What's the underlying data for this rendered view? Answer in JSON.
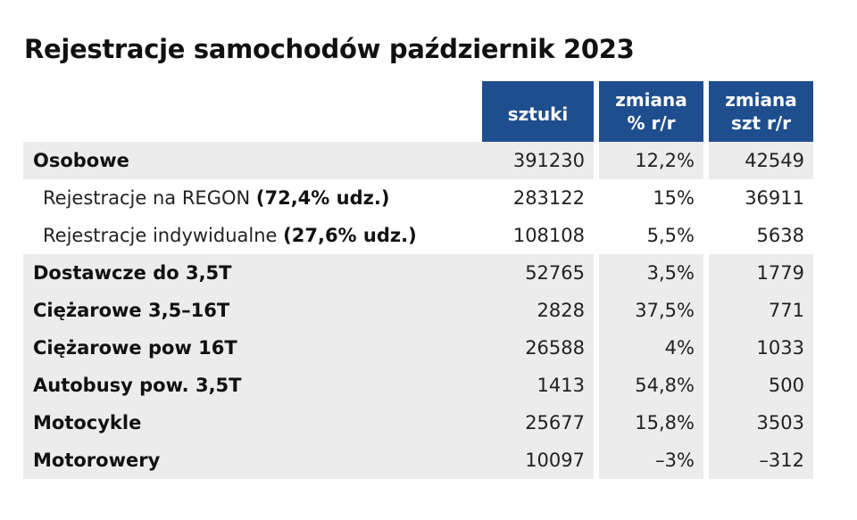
{
  "title": "Rejestracje samochodów październik 2023",
  "headers": {
    "units": "sztuki",
    "change_pct_line1": "zmiana",
    "change_pct_line2": "% r/r",
    "change_szt_line1": "zmiana",
    "change_szt_line2": "szt r/r"
  },
  "colors": {
    "header_bg": "#1f4e8f",
    "positive": "#6aaa3a",
    "negative": "#d9252b",
    "shade": "#ececec"
  },
  "rows": [
    {
      "label": "Osobowe",
      "share": "",
      "units": "391230",
      "change_pct": "12,2%",
      "change_szt": "42549"
    },
    {
      "label": "Rejestracje na REGON ",
      "share": "(72,4% udz.)",
      "units": "283122",
      "change_pct": "15%",
      "change_szt": "36911"
    },
    {
      "label": "Rejestracje indywidualne ",
      "share": "(27,6% udz.)",
      "units": "108108",
      "change_pct": "5,5%",
      "change_szt": "5638"
    },
    {
      "label": "Dostawcze do 3,5T",
      "share": "",
      "units": "52765",
      "change_pct": "3,5%",
      "change_szt": "1779"
    },
    {
      "label": "Ciężarowe 3,5–16T",
      "share": "",
      "units": "2828",
      "change_pct": "37,5%",
      "change_szt": "771"
    },
    {
      "label": "Ciężarowe pow 16T",
      "share": "",
      "units": "26588",
      "change_pct": "4%",
      "change_szt": "1033"
    },
    {
      "label": "Autobusy pow. 3,5T",
      "share": "",
      "units": "1413",
      "change_pct": "54,8%",
      "change_szt": "500"
    },
    {
      "label": "Motocykle",
      "share": "",
      "units": "25677",
      "change_pct": "15,8%",
      "change_szt": "3503"
    },
    {
      "label": "Motorowery",
      "share": "",
      "units": "10097",
      "change_pct": "–3%",
      "change_szt": "–312"
    }
  ]
}
